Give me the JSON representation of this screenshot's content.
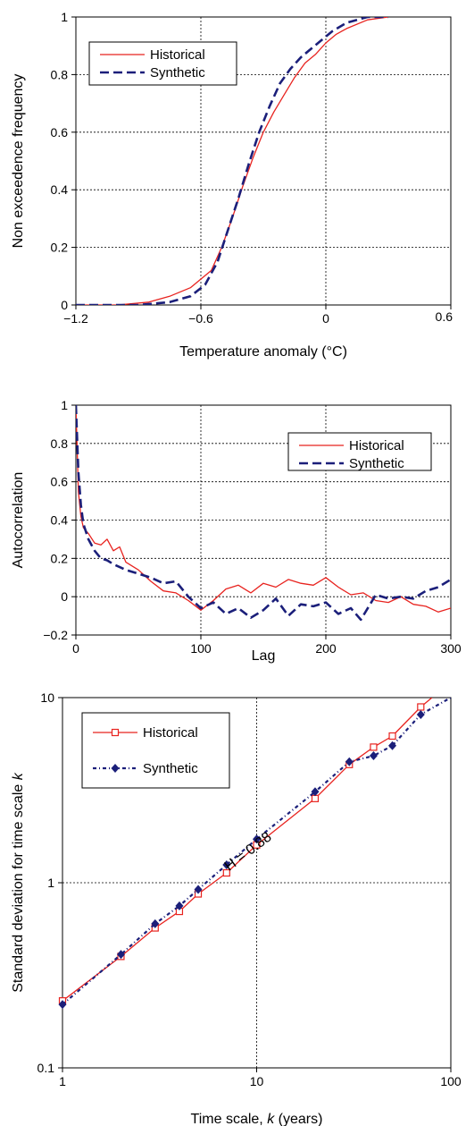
{
  "colors": {
    "historical": "#e8231f",
    "synthetic": "#1b1f7a"
  },
  "chart_data": [
    {
      "type": "line",
      "xlabel": "Temperature anomaly (°C)",
      "ylabel": "Non exceedence frequency",
      "xlim": [
        -1.2,
        0.6
      ],
      "ylim": [
        0,
        1
      ],
      "xticks": [
        -1.2,
        -0.6,
        0,
        0.6
      ],
      "xtick_labels": [
        "−1.2",
        "−0.6",
        "0",
        "0.6"
      ],
      "yticks": [
        0,
        0.2,
        0.4,
        0.6,
        0.8,
        1
      ],
      "ytick_labels": [
        "0",
        "0.2",
        "0.4",
        "0.6",
        "0.8",
        "1"
      ],
      "grid": true,
      "legend": "top-left",
      "series": [
        {
          "name": "Historical",
          "x": [
            -1.2,
            -1.0,
            -0.85,
            -0.75,
            -0.65,
            -0.55,
            -0.5,
            -0.45,
            -0.4,
            -0.35,
            -0.3,
            -0.25,
            -0.2,
            -0.15,
            -0.1,
            -0.05,
            0.0,
            0.05,
            0.1,
            0.2,
            0.3
          ],
          "y": [
            0.0,
            0.0,
            0.01,
            0.03,
            0.06,
            0.12,
            0.2,
            0.3,
            0.41,
            0.51,
            0.6,
            0.67,
            0.73,
            0.79,
            0.84,
            0.87,
            0.91,
            0.94,
            0.96,
            0.99,
            1.0
          ]
        },
        {
          "name": "Synthetic",
          "x": [
            -1.2,
            -0.9,
            -0.75,
            -0.65,
            -0.58,
            -0.52,
            -0.47,
            -0.42,
            -0.37,
            -0.32,
            -0.27,
            -0.22,
            -0.17,
            -0.12,
            -0.07,
            -0.02,
            0.03,
            0.1,
            0.2,
            0.3
          ],
          "y": [
            0.0,
            0.0,
            0.01,
            0.03,
            0.07,
            0.15,
            0.26,
            0.37,
            0.49,
            0.6,
            0.69,
            0.77,
            0.82,
            0.86,
            0.89,
            0.92,
            0.95,
            0.98,
            1.0,
            1.0
          ]
        }
      ]
    },
    {
      "type": "line",
      "xlabel": "Lag",
      "ylabel": "Autocorrelation",
      "xlim": [
        0,
        300
      ],
      "ylim": [
        -0.2,
        1
      ],
      "xticks": [
        0,
        100,
        200,
        300
      ],
      "xtick_labels": [
        "0",
        "100",
        "200",
        "300"
      ],
      "yticks": [
        -0.2,
        0,
        0.2,
        0.4,
        0.6,
        0.8,
        1
      ],
      "ytick_labels": [
        "−0.2",
        "0",
        "0.2",
        "0.4",
        "0.6",
        "0.8",
        "1"
      ],
      "grid": true,
      "legend": "top-right",
      "series": [
        {
          "name": "Historical",
          "x": [
            0,
            2,
            4,
            6,
            10,
            15,
            20,
            25,
            30,
            35,
            40,
            50,
            60,
            70,
            80,
            90,
            100,
            110,
            120,
            130,
            140,
            150,
            160,
            170,
            180,
            190,
            200,
            210,
            220,
            230,
            240,
            250,
            260,
            270,
            280,
            290,
            300
          ],
          "y": [
            1.0,
            0.55,
            0.42,
            0.36,
            0.33,
            0.28,
            0.27,
            0.3,
            0.24,
            0.26,
            0.18,
            0.14,
            0.08,
            0.03,
            0.02,
            -0.02,
            -0.07,
            -0.02,
            0.04,
            0.06,
            0.02,
            0.07,
            0.05,
            0.09,
            0.07,
            0.06,
            0.1,
            0.05,
            0.01,
            0.02,
            -0.02,
            -0.03,
            0.0,
            -0.04,
            -0.05,
            -0.08,
            -0.06
          ]
        },
        {
          "name": "Synthetic",
          "x": [
            0,
            2,
            4,
            6,
            10,
            15,
            20,
            25,
            30,
            40,
            50,
            60,
            70,
            80,
            90,
            100,
            110,
            120,
            130,
            140,
            150,
            160,
            170,
            180,
            190,
            200,
            210,
            220,
            228,
            240,
            250,
            260,
            270,
            280,
            290,
            300
          ],
          "y": [
            1.0,
            0.65,
            0.48,
            0.38,
            0.3,
            0.24,
            0.2,
            0.19,
            0.17,
            0.14,
            0.12,
            0.1,
            0.07,
            0.08,
            0.0,
            -0.06,
            -0.03,
            -0.09,
            -0.06,
            -0.11,
            -0.07,
            -0.01,
            -0.1,
            -0.04,
            -0.05,
            -0.03,
            -0.09,
            -0.06,
            -0.12,
            0.01,
            -0.01,
            0.0,
            -0.01,
            0.03,
            0.05,
            0.09
          ]
        }
      ]
    },
    {
      "type": "line",
      "xlabel": "Time scale, k (years)",
      "xlabel_parts": [
        "Time scale, ",
        "k",
        " (years)"
      ],
      "ylabel": "Standard deviation for time scale k",
      "ylabel_parts": [
        "Standard deviation for  time scale ",
        "k"
      ],
      "x_scale": "log",
      "y_scale": "log",
      "xlim": [
        1,
        100
      ],
      "ylim": [
        0.1,
        10
      ],
      "xticks": [
        1,
        10,
        100
      ],
      "xtick_labels": [
        "1",
        "10",
        "100"
      ],
      "yticks": [
        0.1,
        1,
        10
      ],
      "ytick_labels": [
        "0.1",
        "1",
        "10"
      ],
      "grid": true,
      "legend": "top-left",
      "annotations": [
        {
          "text": "H = 0.88",
          "x": 7.2,
          "y": 1.15
        }
      ],
      "series": [
        {
          "name": "Historical",
          "marker": "square",
          "x": [
            1,
            2,
            3,
            4,
            5,
            7,
            10,
            20,
            30,
            40,
            50,
            70,
            80
          ],
          "y": [
            0.23,
            0.4,
            0.57,
            0.7,
            0.87,
            1.13,
            1.6,
            2.85,
            4.35,
            5.4,
            6.2,
            8.9,
            10.0
          ],
          "marked": [
            true,
            true,
            true,
            true,
            true,
            true,
            true,
            true,
            true,
            true,
            true,
            true,
            false
          ]
        },
        {
          "name": "Synthetic",
          "marker": "diamond",
          "x": [
            1,
            2,
            3,
            4,
            5,
            7,
            10,
            20,
            30,
            40,
            50,
            70,
            100
          ],
          "y": [
            0.22,
            0.41,
            0.6,
            0.75,
            0.92,
            1.25,
            1.72,
            3.1,
            4.5,
            4.85,
            5.5,
            8.1,
            10.0
          ],
          "marked": [
            true,
            true,
            true,
            true,
            true,
            true,
            true,
            true,
            true,
            true,
            true,
            true,
            false
          ]
        }
      ]
    }
  ]
}
